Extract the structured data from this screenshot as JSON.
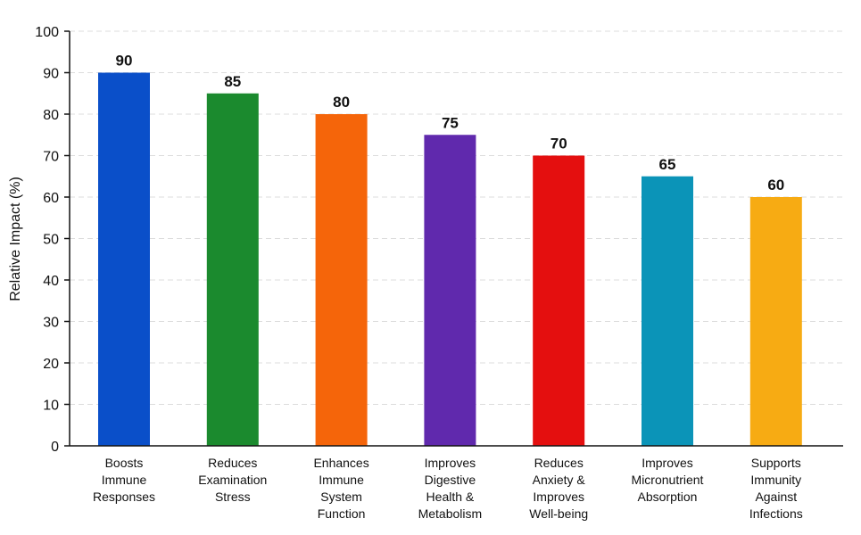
{
  "chart_data": {
    "type": "bar",
    "title": "",
    "xlabel": "",
    "ylabel": "Relative Impact (%)",
    "ylim": [
      0,
      100
    ],
    "yticks": [
      0,
      10,
      20,
      30,
      40,
      50,
      60,
      70,
      80,
      90,
      100
    ],
    "grid": "horizontal dashed",
    "categories": [
      [
        "Boosts",
        "Immune",
        "Responses"
      ],
      [
        "Reduces",
        "Examination",
        "Stress"
      ],
      [
        "Enhances",
        "Immune",
        "System",
        "Function"
      ],
      [
        "Improves",
        "Digestive",
        "Health &",
        "Metabolism"
      ],
      [
        "Reduces",
        "Anxiety &",
        "Improves",
        "Well-being"
      ],
      [
        "Improves",
        "Micronutrient",
        "Absorption"
      ],
      [
        "Supports",
        "Immunity",
        "Against",
        "Infections"
      ]
    ],
    "values": [
      90,
      85,
      80,
      75,
      70,
      65,
      60
    ],
    "value_labels": [
      "90",
      "85",
      "80",
      "75",
      "70",
      "65",
      "60"
    ],
    "colors": [
      "#0a4fc9",
      "#1b8a2e",
      "#f5650a",
      "#6029ad",
      "#e40f0f",
      "#0b94b8",
      "#f7ab13"
    ]
  }
}
